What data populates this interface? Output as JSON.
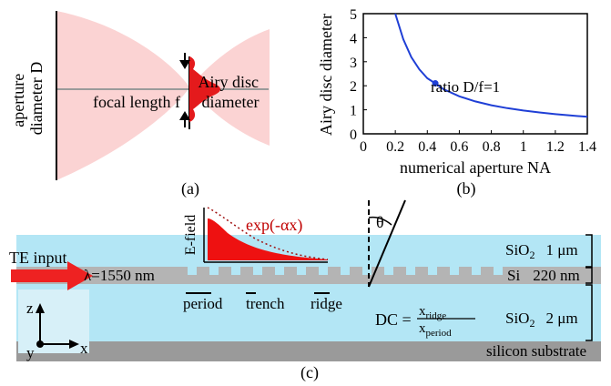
{
  "panel_a": {
    "caption": "(a)",
    "aperture_label_line1": "aperture",
    "aperture_label_line2": "diameter D",
    "focal_label": "focal length f",
    "airy_label_line1": "Airy disc",
    "airy_label_line2": "diameter",
    "colors": {
      "beam": "#fbd3d3",
      "airy": "#e41a1c",
      "axis": "#9a9a9a"
    }
  },
  "panel_b": {
    "caption": "(b)",
    "annotation": "ratio D/f=1",
    "line_color": "#1f3fd6",
    "chart_data": {
      "type": "line",
      "xlabel": "numerical aperture NA",
      "ylabel": "Airy disc diameter",
      "xlim": [
        0,
        1.4
      ],
      "ylim": [
        0,
        5
      ],
      "xticks": [
        "0",
        "0.2",
        "0.4",
        "0.6",
        "0.8",
        "1",
        "1.2",
        "1.4"
      ],
      "yticks": [
        "0",
        "1",
        "2",
        "3",
        "4",
        "5"
      ],
      "series": [
        {
          "x": [
            0.2,
            0.25,
            0.3,
            0.35,
            0.4,
            0.45,
            0.5,
            0.6,
            0.7,
            0.8,
            0.9,
            1.0,
            1.1,
            1.2,
            1.3,
            1.4
          ],
          "y": [
            5.0,
            3.93,
            3.19,
            2.68,
            2.31,
            2.1,
            1.86,
            1.56,
            1.35,
            1.19,
            1.07,
            0.97,
            0.89,
            0.82,
            0.76,
            0.71
          ]
        }
      ],
      "marker": {
        "x": 0.45,
        "y": 2.1
      }
    }
  },
  "panel_c": {
    "caption": "(c)",
    "te_input": "TE input",
    "wavelength": "λ=1550 nm",
    "efield": "E-field",
    "exp_label": "exp(-αx)",
    "theta": "θ",
    "period": "period",
    "trench": "trench",
    "ridge": "ridge",
    "dc_prefix": "DC =",
    "dc_num_base": "x",
    "dc_num_sub": "ridge",
    "dc_den_base": "x",
    "dc_den_sub": "period",
    "axis_z": "z",
    "axis_y": "y",
    "axis_x": "x",
    "sio2_top_material": "SiO",
    "sio2_top_sub": "2",
    "sio2_top_thickness": "1 μm",
    "si_material": "Si",
    "si_thickness": "220 nm",
    "sio2_bottom_material": "SiO",
    "sio2_bottom_sub": "2",
    "sio2_bottom_thickness": "2 μm",
    "substrate": "silicon substrate",
    "colors": {
      "oxide": "#b3e6f5",
      "silicon": "#b4b4b4",
      "substrate": "#9a9a9a",
      "arrow": "#ee2222",
      "field": "#ee1111"
    }
  }
}
